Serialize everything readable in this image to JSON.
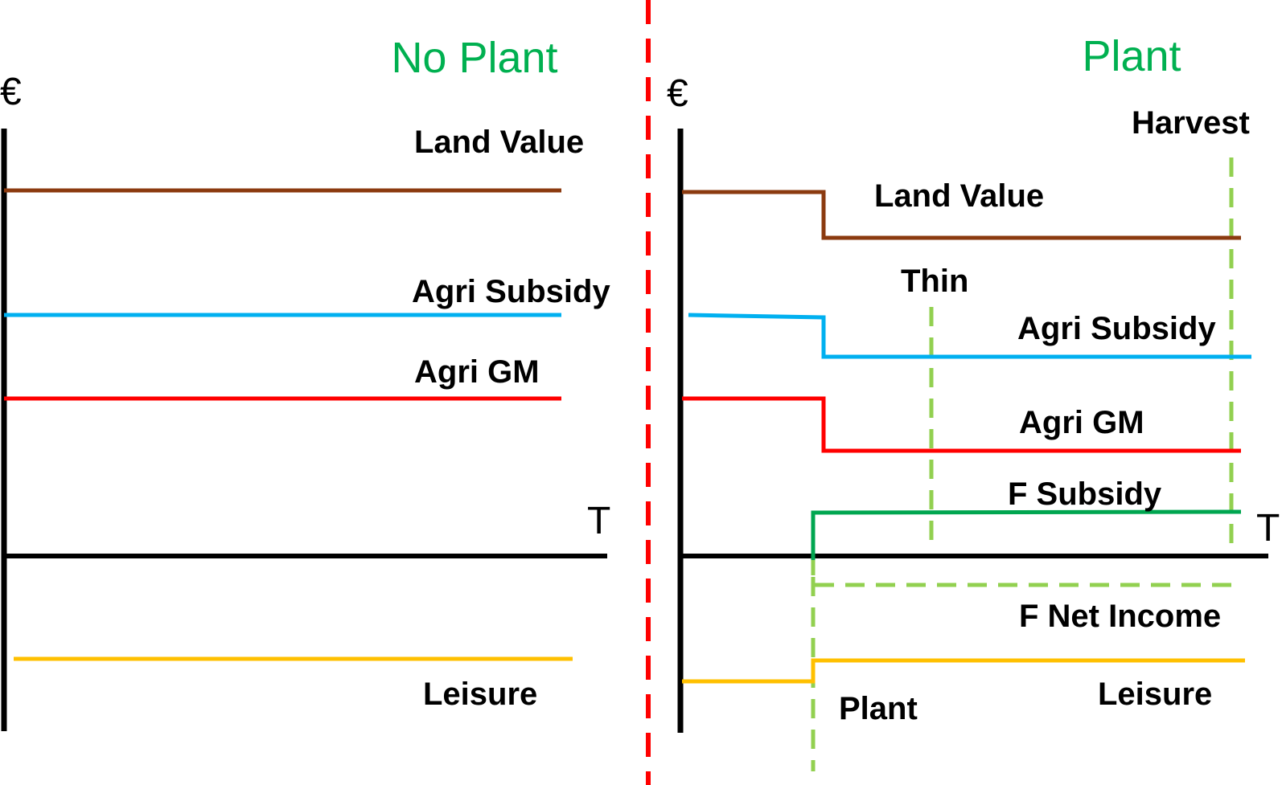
{
  "colors": {
    "land_value": "#8B3A0F",
    "agri_subsidy": "#00B0F0",
    "agri_gm": "#FF0000",
    "f_subsidy": "#00A650",
    "leisure": "#FFC000",
    "event_dashed": "#92D050",
    "divider": "#FF0000",
    "title": "#00B050",
    "axis": "#000000"
  },
  "no_plant": {
    "title": "No Plant",
    "y_axis_symbol": "€",
    "x_axis_symbol": "T",
    "labels": {
      "land_value": "Land Value",
      "agri_subsidy": "Agri Subsidy",
      "agri_gm": "Agri GM",
      "leisure": "Leisure"
    }
  },
  "plant": {
    "title": "Plant",
    "y_axis_symbol": "€",
    "x_axis_symbol": "T",
    "labels": {
      "harvest": "Harvest",
      "land_value": "Land Value",
      "thin": "Thin",
      "agri_subsidy": "Agri Subsidy",
      "agri_gm": "Agri GM",
      "f_subsidy": "F Subsidy",
      "f_net_income": "F Net Income",
      "plant_event": "Plant",
      "leisure": "Leisure"
    }
  }
}
